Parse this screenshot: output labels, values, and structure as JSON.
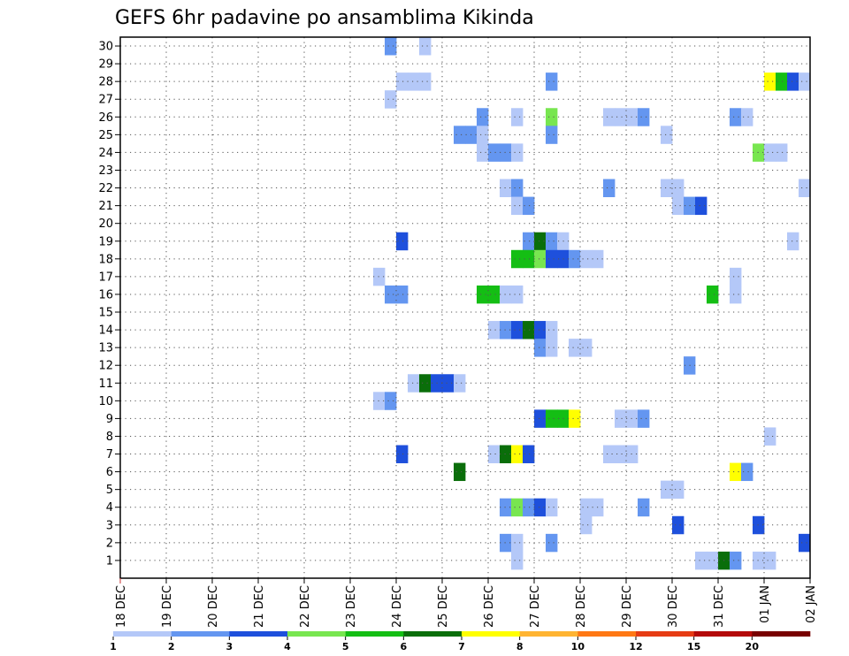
{
  "chart_data": {
    "type": "heatmap",
    "title": "GEFS 6hr padavine po ansamblima Kikinda",
    "xlabel": "",
    "ylabel": "",
    "x_tick_labels": [
      "18 DEC",
      "19 DEC",
      "20 DEC",
      "21 DEC",
      "22 DEC",
      "23 DEC",
      "24 DEC",
      "25 DEC",
      "26 DEC",
      "27 DEC",
      "28 DEC",
      "29 DEC",
      "30 DEC",
      "31 DEC",
      "01 JAN",
      "02 JAN"
    ],
    "y_tick_labels": [
      "1",
      "2",
      "3",
      "4",
      "5",
      "6",
      "7",
      "8",
      "9",
      "10",
      "11",
      "12",
      "13",
      "14",
      "15",
      "16",
      "17",
      "18",
      "19",
      "20",
      "21",
      "22",
      "23",
      "24",
      "25",
      "26",
      "27",
      "28",
      "29",
      "30"
    ],
    "xlim_days": [
      0,
      15
    ],
    "step_hours": 6,
    "ylim_members": [
      1,
      30
    ],
    "grid": true,
    "colorbar_levels": [
      "1",
      "2",
      "3",
      "4",
      "5",
      "6",
      "7",
      "8",
      "10",
      "12",
      "15",
      "20"
    ],
    "colorbar_colors": [
      "#b4c8f8",
      "#6496f0",
      "#1e50dc",
      "#78e650",
      "#14be14",
      "#0a6e0a",
      "#ffff00",
      "#ffb432",
      "#ff7814",
      "#e63c14",
      "#b40a0a",
      "#780000"
    ],
    "cells": [
      {
        "member": 30,
        "day": 5.75,
        "class": 1
      },
      {
        "member": 30,
        "day": 6.5,
        "class": 0
      },
      {
        "member": 28,
        "day": 6.0,
        "class": 0
      },
      {
        "member": 28,
        "day": 6.25,
        "class": 0
      },
      {
        "member": 28,
        "day": 6.5,
        "class": 0
      },
      {
        "member": 28,
        "day": 9.25,
        "class": 1
      },
      {
        "member": 28,
        "day": 14.0,
        "class": 6
      },
      {
        "member": 28,
        "day": 14.25,
        "class": 4
      },
      {
        "member": 28,
        "day": 14.5,
        "class": 2
      },
      {
        "member": 28,
        "day": 14.75,
        "class": 0
      },
      {
        "member": 27,
        "day": 5.75,
        "class": 0
      },
      {
        "member": 26,
        "day": 7.75,
        "class": 1
      },
      {
        "member": 26,
        "day": 8.5,
        "class": 0
      },
      {
        "member": 26,
        "day": 9.25,
        "class": 3
      },
      {
        "member": 26,
        "day": 10.5,
        "class": 0
      },
      {
        "member": 26,
        "day": 10.75,
        "class": 0
      },
      {
        "member": 26,
        "day": 11.0,
        "class": 0
      },
      {
        "member": 26,
        "day": 11.25,
        "class": 1
      },
      {
        "member": 26,
        "day": 13.25,
        "class": 1
      },
      {
        "member": 26,
        "day": 13.5,
        "class": 0
      },
      {
        "member": 25,
        "day": 7.25,
        "class": 1
      },
      {
        "member": 25,
        "day": 7.5,
        "class": 1
      },
      {
        "member": 25,
        "day": 7.75,
        "class": 0
      },
      {
        "member": 25,
        "day": 9.25,
        "class": 1
      },
      {
        "member": 25,
        "day": 11.75,
        "class": 0
      },
      {
        "member": 24,
        "day": 7.75,
        "class": 0
      },
      {
        "member": 24,
        "day": 8.0,
        "class": 1
      },
      {
        "member": 24,
        "day": 8.25,
        "class": 1
      },
      {
        "member": 24,
        "day": 8.5,
        "class": 0
      },
      {
        "member": 24,
        "day": 13.75,
        "class": 3
      },
      {
        "member": 24,
        "day": 14.0,
        "class": 0
      },
      {
        "member": 24,
        "day": 14.25,
        "class": 0
      },
      {
        "member": 22,
        "day": 8.25,
        "class": 0
      },
      {
        "member": 22,
        "day": 8.5,
        "class": 1
      },
      {
        "member": 22,
        "day": 10.5,
        "class": 1
      },
      {
        "member": 22,
        "day": 11.75,
        "class": 0
      },
      {
        "member": 22,
        "day": 12.0,
        "class": 0
      },
      {
        "member": 22,
        "day": 14.75,
        "class": 0
      },
      {
        "member": 21,
        "day": 8.5,
        "class": 0
      },
      {
        "member": 21,
        "day": 8.75,
        "class": 1
      },
      {
        "member": 21,
        "day": 12.0,
        "class": 0
      },
      {
        "member": 21,
        "day": 12.25,
        "class": 1
      },
      {
        "member": 21,
        "day": 12.5,
        "class": 2
      },
      {
        "member": 19,
        "day": 6.0,
        "class": 2
      },
      {
        "member": 19,
        "day": 8.75,
        "class": 1
      },
      {
        "member": 19,
        "day": 9.0,
        "class": 5
      },
      {
        "member": 19,
        "day": 9.25,
        "class": 1
      },
      {
        "member": 19,
        "day": 9.5,
        "class": 0
      },
      {
        "member": 19,
        "day": 14.5,
        "class": 0
      },
      {
        "member": 18,
        "day": 8.5,
        "class": 4
      },
      {
        "member": 18,
        "day": 8.75,
        "class": 4
      },
      {
        "member": 18,
        "day": 9.0,
        "class": 3
      },
      {
        "member": 18,
        "day": 9.25,
        "class": 2
      },
      {
        "member": 18,
        "day": 9.5,
        "class": 2
      },
      {
        "member": 18,
        "day": 9.75,
        "class": 1
      },
      {
        "member": 18,
        "day": 10.0,
        "class": 0
      },
      {
        "member": 18,
        "day": 10.25,
        "class": 0
      },
      {
        "member": 17,
        "day": 5.5,
        "class": 0
      },
      {
        "member": 17,
        "day": 13.25,
        "class": 0
      },
      {
        "member": 16,
        "day": 5.75,
        "class": 1
      },
      {
        "member": 16,
        "day": 6.0,
        "class": 1
      },
      {
        "member": 16,
        "day": 7.75,
        "class": 4
      },
      {
        "member": 16,
        "day": 8.0,
        "class": 4
      },
      {
        "member": 16,
        "day": 8.25,
        "class": 0
      },
      {
        "member": 16,
        "day": 8.5,
        "class": 0
      },
      {
        "member": 16,
        "day": 12.75,
        "class": 4
      },
      {
        "member": 16,
        "day": 13.25,
        "class": 0
      },
      {
        "member": 14,
        "day": 8.0,
        "class": 0
      },
      {
        "member": 14,
        "day": 8.25,
        "class": 1
      },
      {
        "member": 14,
        "day": 8.5,
        "class": 2
      },
      {
        "member": 14,
        "day": 8.75,
        "class": 5
      },
      {
        "member": 14,
        "day": 9.0,
        "class": 2
      },
      {
        "member": 14,
        "day": 9.25,
        "class": 0
      },
      {
        "member": 13,
        "day": 9.0,
        "class": 1
      },
      {
        "member": 13,
        "day": 9.25,
        "class": 0
      },
      {
        "member": 13,
        "day": 9.75,
        "class": 0
      },
      {
        "member": 13,
        "day": 10.0,
        "class": 0
      },
      {
        "member": 12,
        "day": 12.25,
        "class": 1
      },
      {
        "member": 11,
        "day": 6.25,
        "class": 0
      },
      {
        "member": 11,
        "day": 6.5,
        "class": 5
      },
      {
        "member": 11,
        "day": 6.75,
        "class": 2
      },
      {
        "member": 11,
        "day": 7.0,
        "class": 2
      },
      {
        "member": 11,
        "day": 7.25,
        "class": 0
      },
      {
        "member": 10,
        "day": 5.5,
        "class": 0
      },
      {
        "member": 10,
        "day": 5.75,
        "class": 1
      },
      {
        "member": 9,
        "day": 9.0,
        "class": 2
      },
      {
        "member": 9,
        "day": 9.25,
        "class": 4
      },
      {
        "member": 9,
        "day": 9.5,
        "class": 4
      },
      {
        "member": 9,
        "day": 9.75,
        "class": 6
      },
      {
        "member": 9,
        "day": 10.75,
        "class": 0
      },
      {
        "member": 9,
        "day": 11.0,
        "class": 0
      },
      {
        "member": 9,
        "day": 11.25,
        "class": 1
      },
      {
        "member": 8,
        "day": 14.0,
        "class": 0
      },
      {
        "member": 7,
        "day": 6.0,
        "class": 2
      },
      {
        "member": 7,
        "day": 8.0,
        "class": 0
      },
      {
        "member": 7,
        "day": 8.25,
        "class": 5
      },
      {
        "member": 7,
        "day": 8.5,
        "class": 6
      },
      {
        "member": 7,
        "day": 8.75,
        "class": 2
      },
      {
        "member": 7,
        "day": 10.5,
        "class": 0
      },
      {
        "member": 7,
        "day": 10.75,
        "class": 0
      },
      {
        "member": 7,
        "day": 11.0,
        "class": 0
      },
      {
        "member": 6,
        "day": 7.25,
        "class": 5
      },
      {
        "member": 6,
        "day": 13.25,
        "class": 6
      },
      {
        "member": 6,
        "day": 13.5,
        "class": 1
      },
      {
        "member": 5,
        "day": 11.75,
        "class": 0
      },
      {
        "member": 5,
        "day": 12.0,
        "class": 0
      },
      {
        "member": 4,
        "day": 8.25,
        "class": 1
      },
      {
        "member": 4,
        "day": 8.5,
        "class": 3
      },
      {
        "member": 4,
        "day": 8.75,
        "class": 1
      },
      {
        "member": 4,
        "day": 9.0,
        "class": 2
      },
      {
        "member": 4,
        "day": 9.25,
        "class": 0
      },
      {
        "member": 4,
        "day": 10.0,
        "class": 0
      },
      {
        "member": 4,
        "day": 10.25,
        "class": 0
      },
      {
        "member": 4,
        "day": 11.25,
        "class": 1
      },
      {
        "member": 3,
        "day": 10.0,
        "class": 0
      },
      {
        "member": 3,
        "day": 12.0,
        "class": 2
      },
      {
        "member": 3,
        "day": 13.75,
        "class": 2
      },
      {
        "member": 2,
        "day": 8.25,
        "class": 1
      },
      {
        "member": 2,
        "day": 8.5,
        "class": 0
      },
      {
        "member": 2,
        "day": 9.25,
        "class": 1
      },
      {
        "member": 2,
        "day": 14.75,
        "class": 2
      },
      {
        "member": 1,
        "day": 8.5,
        "class": 0
      },
      {
        "member": 1,
        "day": 12.5,
        "class": 0
      },
      {
        "member": 1,
        "day": 12.75,
        "class": 0
      },
      {
        "member": 1,
        "day": 13.0,
        "class": 5
      },
      {
        "member": 1,
        "day": 13.25,
        "class": 1
      },
      {
        "member": 1,
        "day": 13.75,
        "class": 0
      },
      {
        "member": 1,
        "day": 14.0,
        "class": 0
      }
    ]
  }
}
